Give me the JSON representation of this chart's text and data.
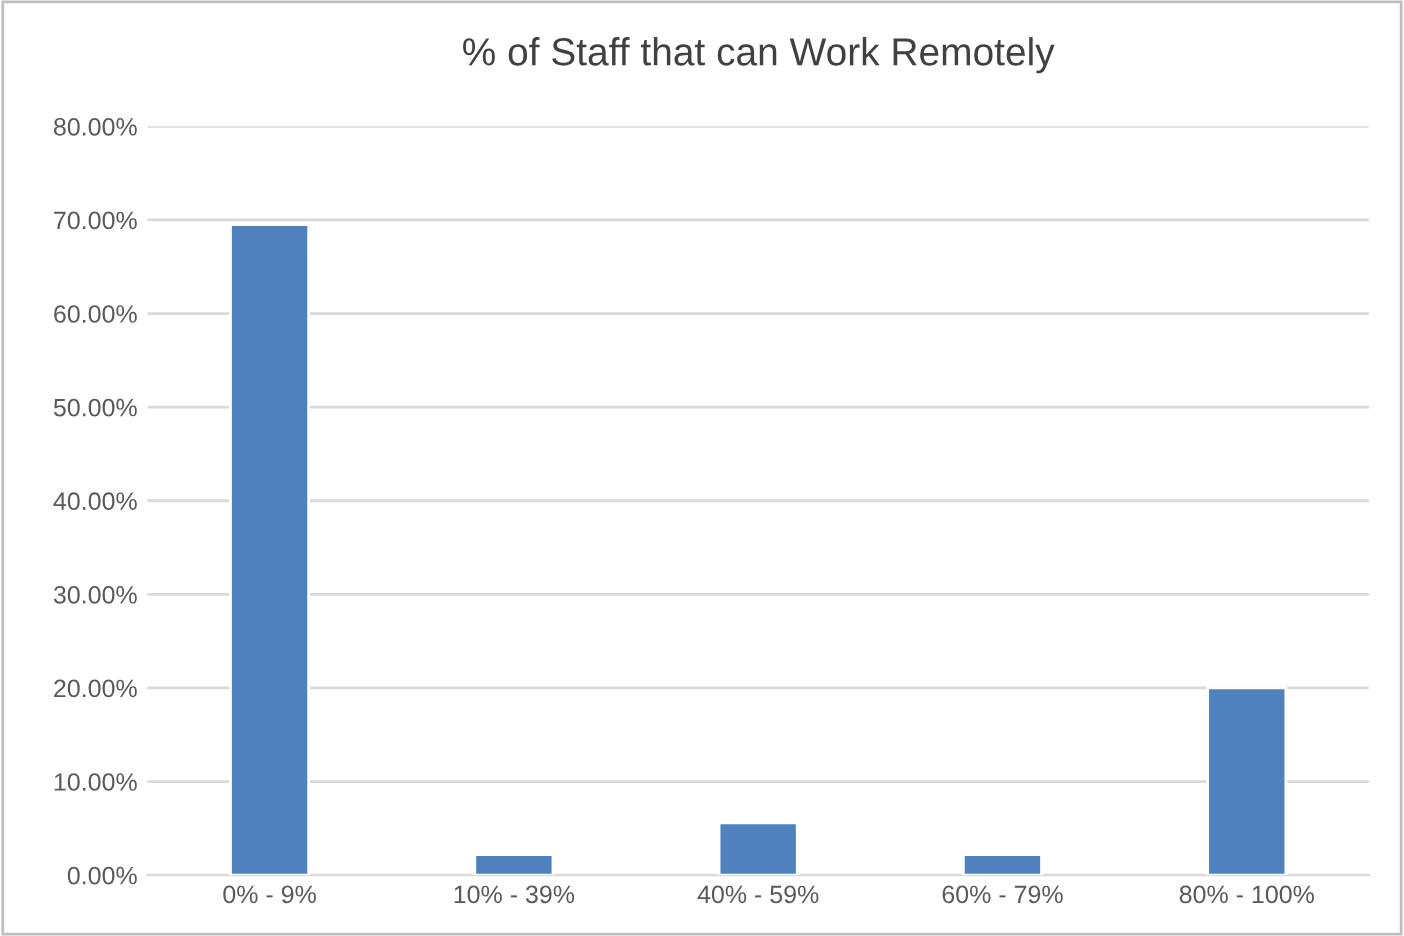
{
  "chart_data": {
    "type": "bar",
    "title": "% of Staff that can Work Remotely",
    "categories": [
      "0% - 9%",
      "10% - 39%",
      "40% - 59%",
      "60% - 79%",
      "80% - 100%"
    ],
    "values": [
      69.5,
      2.2,
      5.6,
      2.2,
      20.0
    ],
    "color": "#4f81bd",
    "ylim": [
      0,
      80
    ],
    "yticks": [
      {
        "value": 0,
        "label": "0.00%"
      },
      {
        "value": 10,
        "label": "10.00%"
      },
      {
        "value": 20,
        "label": "20.00%"
      },
      {
        "value": 30,
        "label": "30.00%"
      },
      {
        "value": 40,
        "label": "40.00%"
      },
      {
        "value": 50,
        "label": "50.00%"
      },
      {
        "value": 60,
        "label": "60.00%"
      },
      {
        "value": 70,
        "label": "70.00%"
      },
      {
        "value": 80,
        "label": "80.00%"
      }
    ],
    "grid": "y",
    "legend": false
  }
}
